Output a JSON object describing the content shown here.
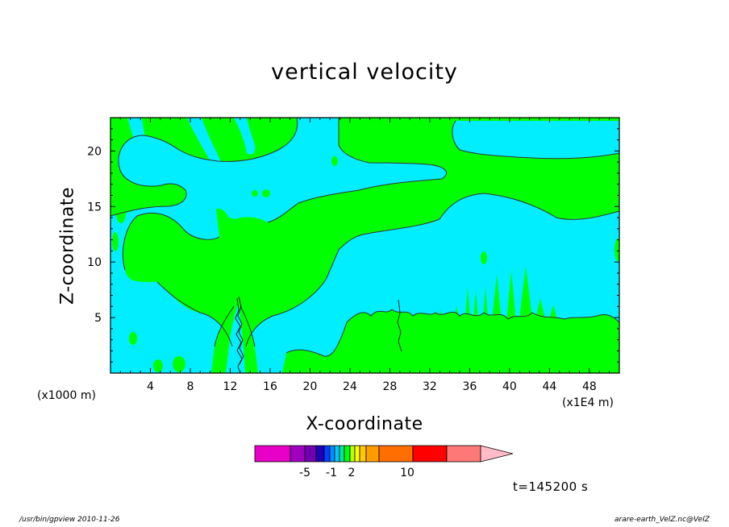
{
  "chart_data": {
    "type": "heatmap",
    "title": "vertical velocity",
    "xlabel": "X-coordinate",
    "ylabel": "Z-coordinate",
    "x_unit_label": "(x1000 m)",
    "x_scale_label": "(x1E4 m)",
    "time_label": "t=145200 s",
    "xlim": [
      0,
      51
    ],
    "ylim": [
      0,
      23
    ],
    "x_ticks": [
      4,
      8,
      12,
      16,
      20,
      24,
      28,
      32,
      36,
      40,
      44,
      48
    ],
    "y_ticks": [
      5,
      10,
      15,
      20
    ],
    "colors": {
      "negative_weak": "#00eeff",
      "positive_weak": "#00ff00",
      "contour_line": "#333333",
      "frame": "#000000"
    },
    "colorbar": {
      "colors": [
        "#e800c8",
        "#a000c0",
        "#7000b0",
        "#1f00b8",
        "#0040ff",
        "#0090ff",
        "#00c8ff",
        "#00e8a0",
        "#00ff00",
        "#b8ff00",
        "#ffff00",
        "#ffc800",
        "#ff9c00",
        "#ff6e00",
        "#ff0000",
        "#ff7878",
        "#ffbcc8"
      ],
      "labels": [
        "-5",
        "-1",
        "2",
        "10"
      ]
    }
  },
  "footer": {
    "left": "/usr/bin/gpview   2010-11-26",
    "right": "arare-earth_VelZ.nc@VelZ"
  }
}
